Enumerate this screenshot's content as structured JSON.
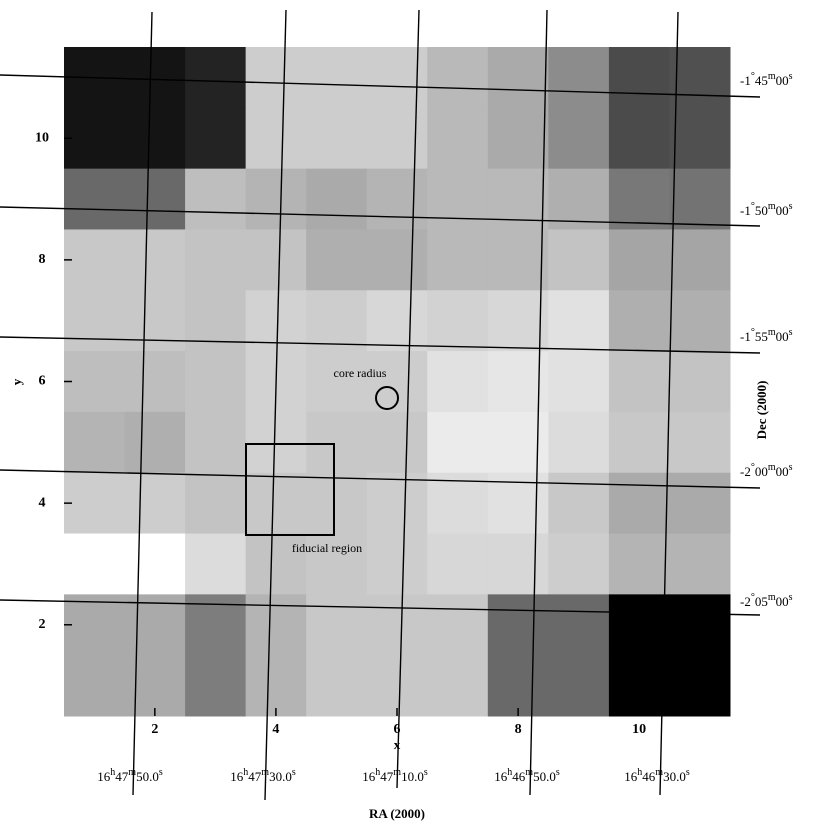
{
  "chart_data": {
    "type": "heatmap",
    "colormap": "gray",
    "x_label": "x",
    "y_label": "y",
    "xlim": [
      0.5,
      11.5
    ],
    "ylim": [
      0.5,
      11.5
    ],
    "xticks": [
      2,
      4,
      6,
      8,
      10
    ],
    "yticks": [
      2,
      4,
      6,
      8,
      10
    ],
    "x": [
      1,
      2,
      3,
      4,
      5,
      6,
      7,
      8,
      9,
      10,
      11
    ],
    "y": [
      11,
      10,
      9,
      8,
      7,
      6,
      5,
      4,
      3,
      2,
      1
    ],
    "z": [
      [
        20,
        20,
        35,
        205,
        205,
        205,
        185,
        170,
        140,
        75,
        80
      ],
      [
        20,
        20,
        35,
        205,
        205,
        205,
        185,
        170,
        140,
        75,
        80
      ],
      [
        105,
        105,
        190,
        180,
        170,
        180,
        185,
        185,
        175,
        120,
        115
      ],
      [
        200,
        200,
        195,
        195,
        175,
        175,
        185,
        185,
        195,
        165,
        165
      ],
      [
        200,
        200,
        195,
        210,
        205,
        215,
        210,
        215,
        225,
        175,
        175
      ],
      [
        190,
        190,
        195,
        210,
        205,
        205,
        225,
        230,
        225,
        195,
        195
      ],
      [
        180,
        175,
        195,
        210,
        200,
        200,
        235,
        235,
        220,
        200,
        200
      ],
      [
        205,
        205,
        195,
        200,
        200,
        205,
        220,
        225,
        200,
        170,
        170
      ],
      [
        255,
        255,
        220,
        195,
        200,
        205,
        215,
        215,
        205,
        180,
        180
      ],
      [
        170,
        170,
        125,
        180,
        200,
        200,
        200,
        105,
        105,
        0,
        0
      ],
      [
        170,
        170,
        125,
        180,
        200,
        200,
        200,
        105,
        105,
        0,
        0
      ]
    ],
    "annotations": {
      "core_radius": "core radius",
      "fiducial_region": "fiducial region"
    },
    "ra_label": "RA (2000)",
    "ra_ticks": [
      "16h47m50.0s",
      "16h47m30.0s",
      "16h47m10.0s",
      "16h46m50.0s",
      "16h46m30.0s"
    ],
    "dec_label": "Dec (2000)",
    "dec_ticks": [
      "-1°45m00s",
      "-1°50m00s",
      "-1°55m00s",
      "-2°00m00s",
      "-2°05m00s"
    ]
  }
}
